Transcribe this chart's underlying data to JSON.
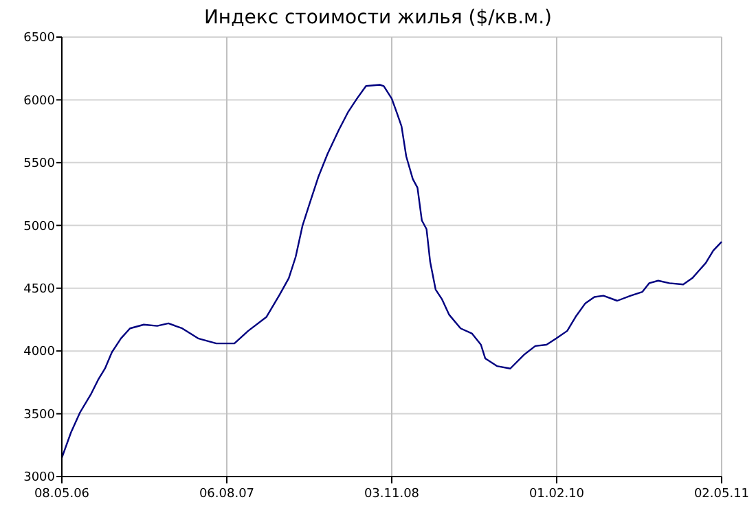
{
  "chart_data": {
    "type": "line",
    "title": "Индекс стоимости жилья ($/кв.м.)",
    "xlim": [
      "2006-05-08",
      "2011-05-02"
    ],
    "xticks": [
      {
        "value": "2006-05-08",
        "label": "08.05.06"
      },
      {
        "value": "2007-08-06",
        "label": "06.08.07"
      },
      {
        "value": "2008-11-03",
        "label": "03.11.08"
      },
      {
        "value": "2010-02-01",
        "label": "01.02.10"
      },
      {
        "value": "2011-05-02",
        "label": "02.05.11"
      }
    ],
    "ylim": [
      3000,
      6500
    ],
    "yticks": [
      3000,
      3500,
      4000,
      4500,
      5000,
      5500,
      6000,
      6500
    ],
    "grid": true,
    "series": [
      {
        "color": "#000080",
        "x": [
          "2006-05-08",
          "2006-06-02",
          "2006-06-27",
          "2006-07-28",
          "2006-08-16",
          "2006-09-04",
          "2006-09-23",
          "2006-10-18",
          "2006-11-12",
          "2006-12-20",
          "2007-01-26",
          "2007-02-26",
          "2007-04-05",
          "2007-05-19",
          "2007-07-08",
          "2007-08-27",
          "2007-10-04",
          "2007-11-23",
          "2007-12-30",
          "2008-01-24",
          "2008-02-12",
          "2008-03-02",
          "2008-03-21",
          "2008-04-15",
          "2008-05-10",
          "2008-06-10",
          "2008-07-05",
          "2008-07-30",
          "2008-08-24",
          "2008-10-01",
          "2008-10-12",
          "2008-11-03",
          "2008-11-18",
          "2008-11-30",
          "2008-12-13",
          "2008-12-31",
          "2009-01-13",
          "2009-01-25",
          "2009-02-07",
          "2009-02-17",
          "2009-03-04",
          "2009-03-22",
          "2009-04-10",
          "2009-05-12",
          "2009-06-12",
          "2009-07-07",
          "2009-07-19",
          "2009-08-20",
          "2009-09-26",
          "2009-11-03",
          "2009-12-04",
          "2010-01-04",
          "2010-01-31",
          "2010-03-02",
          "2010-03-27",
          "2010-04-21",
          "2010-05-16",
          "2010-06-10",
          "2010-07-18",
          "2010-08-24",
          "2010-09-25",
          "2010-10-14",
          "2010-11-08",
          "2010-12-09",
          "2011-01-16",
          "2011-02-10",
          "2011-03-19",
          "2011-04-09",
          "2011-05-02"
        ],
        "values": [
          3150,
          3350,
          3510,
          3660,
          3770,
          3860,
          3990,
          4100,
          4180,
          4210,
          4200,
          4220,
          4180,
          4100,
          4060,
          4060,
          4160,
          4270,
          4450,
          4580,
          4750,
          5000,
          5170,
          5390,
          5570,
          5760,
          5900,
          6010,
          6110,
          6120,
          6110,
          6010,
          5890,
          5790,
          5550,
          5370,
          5300,
          5040,
          4970,
          4710,
          4490,
          4410,
          4290,
          4180,
          4140,
          4050,
          3940,
          3880,
          3860,
          3970,
          4040,
          4050,
          4100,
          4160,
          4280,
          4380,
          4430,
          4440,
          4400,
          4440,
          4470,
          4540,
          4560,
          4540,
          4530,
          4580,
          4700,
          4800,
          4870
        ]
      }
    ]
  }
}
